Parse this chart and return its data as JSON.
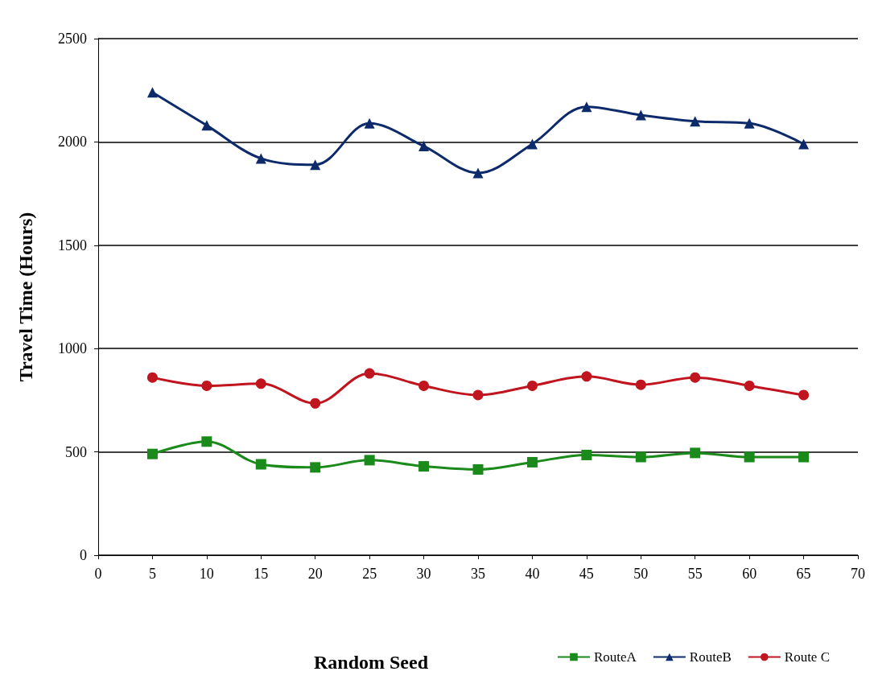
{
  "chart_data": {
    "type": "line",
    "xlabel": "Random Seed",
    "ylabel": "Travel Time (Hours)",
    "x": [
      5,
      10,
      15,
      20,
      25,
      30,
      35,
      40,
      45,
      50,
      55,
      60,
      65
    ],
    "series": [
      {
        "name": "RouteA",
        "color": "#1a8a1a",
        "marker": "square",
        "values": [
          490,
          550,
          440,
          425,
          460,
          430,
          415,
          450,
          485,
          475,
          495,
          475,
          475
        ]
      },
      {
        "name": "RouteB",
        "color": "#0d2a6b",
        "marker": "triangle",
        "values": [
          2240,
          2080,
          1920,
          1890,
          2090,
          1980,
          1850,
          1990,
          2170,
          2130,
          2100,
          2090,
          1990
        ]
      },
      {
        "name": "Route C",
        "color": "#c0141e",
        "marker": "circle",
        "values": [
          860,
          820,
          830,
          735,
          880,
          820,
          775,
          820,
          865,
          825,
          860,
          820,
          775
        ]
      }
    ],
    "xlim": [
      0,
      70
    ],
    "xticks": [
      0,
      5,
      10,
      15,
      20,
      25,
      30,
      35,
      40,
      45,
      50,
      55,
      60,
      65,
      70
    ],
    "ylim": [
      0,
      2500
    ],
    "yticks": [
      0,
      500,
      1000,
      1500,
      2000,
      2500
    ],
    "grid": "y",
    "legend": "bottom right"
  }
}
